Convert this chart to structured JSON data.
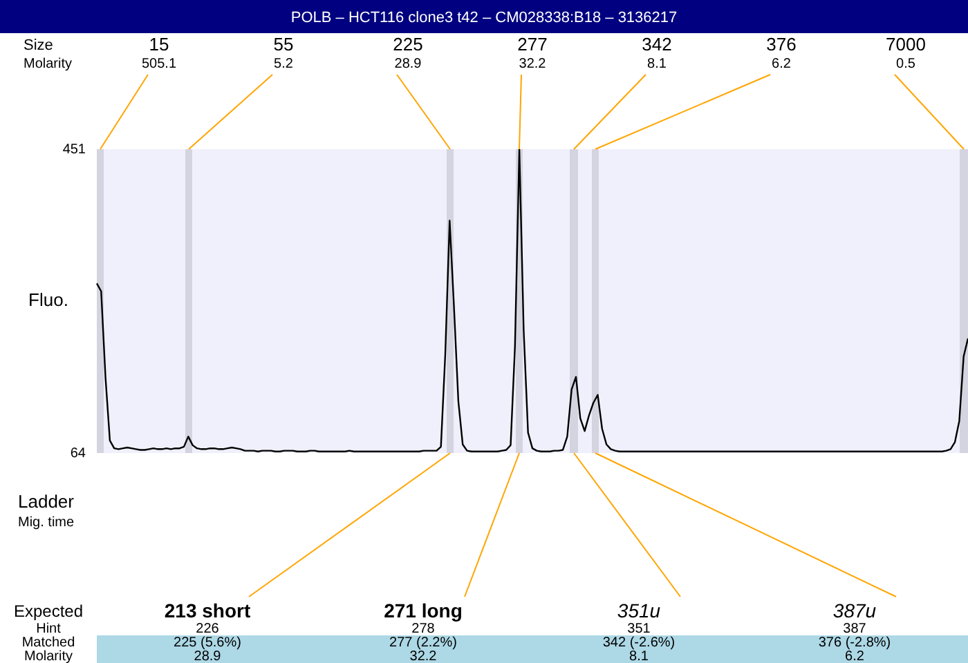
{
  "chart_data": {
    "type": "line",
    "title": "POLB – HCT116 clone3 t42 – CM028338:B18 – 3136217",
    "ylabel": "Fluo.",
    "ylim": [
      64,
      451
    ],
    "yticks": [
      64,
      451
    ],
    "tick_labels": "y",
    "grid": false,
    "legend": false,
    "marker": "none",
    "line_style": "solid",
    "categories": [
      null,
      null,
      null,
      null,
      null,
      null,
      null,
      null,
      null,
      null,
      null,
      null,
      null,
      null,
      null,
      null,
      null,
      null,
      null,
      null,
      null,
      null,
      null,
      null,
      null,
      null,
      null,
      null,
      null,
      null,
      null,
      null,
      null,
      null,
      null,
      null,
      null,
      null,
      null,
      null,
      null,
      null,
      null,
      null,
      null,
      null,
      null,
      null,
      null,
      null,
      null,
      null,
      null,
      null,
      null,
      null,
      null,
      null,
      null,
      null,
      null,
      null,
      null,
      null,
      null,
      null,
      null,
      null,
      null,
      null,
      null,
      null,
      null,
      null,
      null,
      null,
      null,
      null,
      null,
      null,
      null,
      null,
      null,
      null,
      null,
      null,
      null,
      null,
      null,
      null,
      null,
      null,
      null,
      null,
      null,
      null,
      null,
      null,
      null,
      null,
      null,
      null,
      null,
      null,
      null,
      null,
      null,
      null,
      null,
      null,
      null,
      null,
      null,
      null,
      null,
      null,
      null,
      null,
      null,
      null,
      null,
      null,
      null,
      null,
      null,
      null,
      null,
      null,
      null,
      null,
      null,
      null,
      null,
      null,
      null,
      null,
      null,
      null,
      null,
      null,
      null,
      null,
      null,
      null,
      null,
      null,
      null,
      null,
      null,
      null,
      null,
      null,
      null,
      null,
      null,
      null,
      null,
      null,
      null,
      null,
      null,
      null,
      null,
      null,
      null,
      null,
      null,
      null,
      null,
      null,
      null,
      null,
      null,
      null,
      null,
      null,
      null,
      null,
      null,
      null,
      null,
      null,
      null,
      null,
      null,
      null,
      null,
      null,
      null,
      null,
      null,
      null,
      null,
      null,
      null,
      null,
      null,
      null,
      null,
      null,
      null
    ],
    "series": [
      {
        "color": "#000000",
        "values": [
          280,
          270,
          160,
          80,
          70,
          69,
          70,
          71,
          70,
          69,
          68,
          68,
          69,
          70,
          69,
          69,
          70,
          69,
          70,
          70,
          72,
          85,
          74,
          70,
          69,
          69,
          70,
          70,
          69,
          69,
          70,
          71,
          70,
          69,
          67,
          67,
          67,
          66,
          67,
          67,
          67,
          66,
          66,
          67,
          67,
          67,
          66,
          66,
          66,
          67,
          67,
          66,
          66,
          66,
          66,
          66,
          66,
          66,
          67,
          66,
          66,
          66,
          66,
          66,
          66,
          66,
          66,
          66,
          66,
          66,
          66,
          66,
          66,
          66,
          66,
          67,
          67,
          67,
          67,
          72,
          190,
          360,
          250,
          130,
          75,
          67,
          66,
          66,
          66,
          66,
          66,
          66,
          66,
          67,
          68,
          74,
          200,
          451,
          220,
          90,
          70,
          67,
          66,
          66,
          66,
          67,
          67,
          68,
          85,
          145,
          161,
          108,
          92,
          112,
          128,
          138,
          95,
          75,
          69,
          67,
          66,
          66,
          66,
          66,
          66,
          66,
          66,
          66,
          66,
          66,
          66,
          66,
          66,
          66,
          66,
          66,
          66,
          66,
          66,
          66,
          66,
          66,
          66,
          66,
          66,
          66,
          66,
          66,
          66,
          66,
          66,
          66,
          66,
          66,
          66,
          66,
          66,
          66,
          66,
          66,
          66,
          66,
          66,
          66,
          66,
          66,
          66,
          66,
          66,
          66,
          66,
          66,
          66,
          66,
          66,
          66,
          66,
          66,
          66,
          66,
          66,
          66,
          66,
          66,
          66,
          66,
          66,
          66,
          66,
          66,
          66,
          66,
          66,
          66,
          66,
          67,
          69,
          78,
          105,
          187,
          210
        ]
      }
    ],
    "annotations": [
      "Size",
      "Molarity",
      "15",
      "55",
      "225",
      "277",
      "342",
      "376",
      "7000",
      "505.1",
      "5.2",
      "28.9",
      "32.2",
      "8.1",
      "6.2",
      "0.5",
      "Ladder",
      "Mig. time",
      "Expected",
      "Hint",
      "Matched",
      "Molarity",
      "213 short",
      "226",
      "225 (5.6%)",
      "28.9",
      "271 long",
      "278",
      "277 (2.2%)",
      "32.2",
      "351u",
      "351",
      "342 (-2.6%)",
      "8.1",
      "387u",
      "387",
      "376 (-2.8%)",
      "6.2"
    ]
  }
}
